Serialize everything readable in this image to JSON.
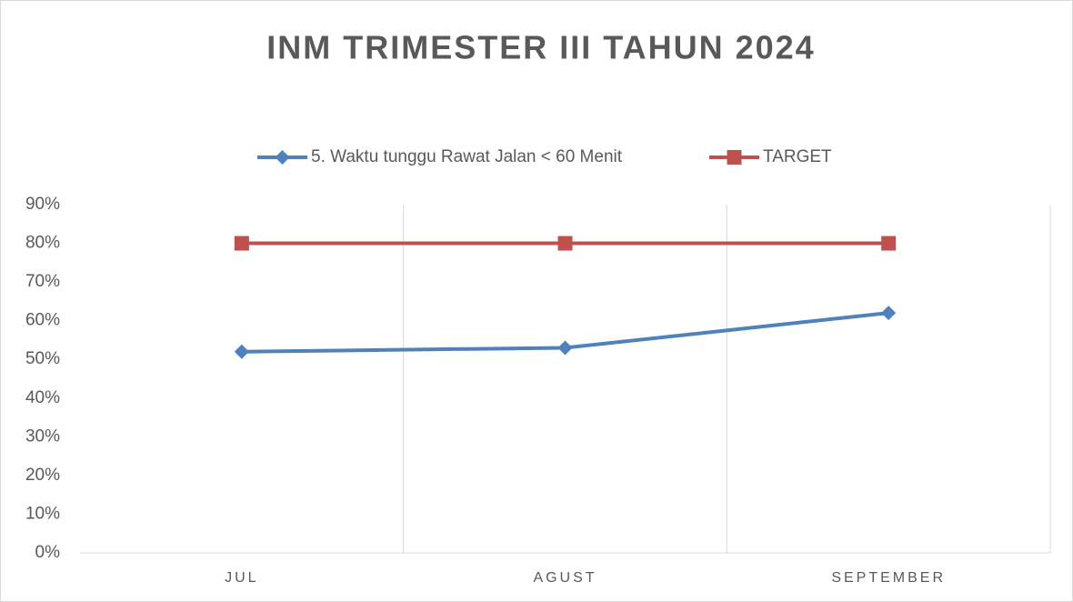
{
  "chart_data": {
    "type": "line",
    "title": "INM TRIMESTER III TAHUN 2024",
    "categories": [
      "JUL",
      "AGUST",
      "SEPTEMBER"
    ],
    "series": [
      {
        "name": "5. Waktu tunggu Rawat Jalan < 60 Menit",
        "color": "#4f81bd",
        "marker": "diamond",
        "values": [
          52,
          53,
          62
        ]
      },
      {
        "name": "TARGET",
        "color": "#c0504d",
        "marker": "square",
        "values": [
          80,
          80,
          80
        ]
      }
    ],
    "ylim": [
      0,
      90
    ],
    "yticks": [
      {
        "value": 0,
        "label": "0%"
      },
      {
        "value": 10,
        "label": "10%"
      },
      {
        "value": 20,
        "label": "20%"
      },
      {
        "value": 30,
        "label": "30%"
      },
      {
        "value": 40,
        "label": "40%"
      },
      {
        "value": 50,
        "label": "50%"
      },
      {
        "value": 60,
        "label": "60%"
      },
      {
        "value": 70,
        "label": "70%"
      },
      {
        "value": 80,
        "label": "80%"
      },
      {
        "value": 90,
        "label": "90%"
      }
    ],
    "legend": "top"
  }
}
